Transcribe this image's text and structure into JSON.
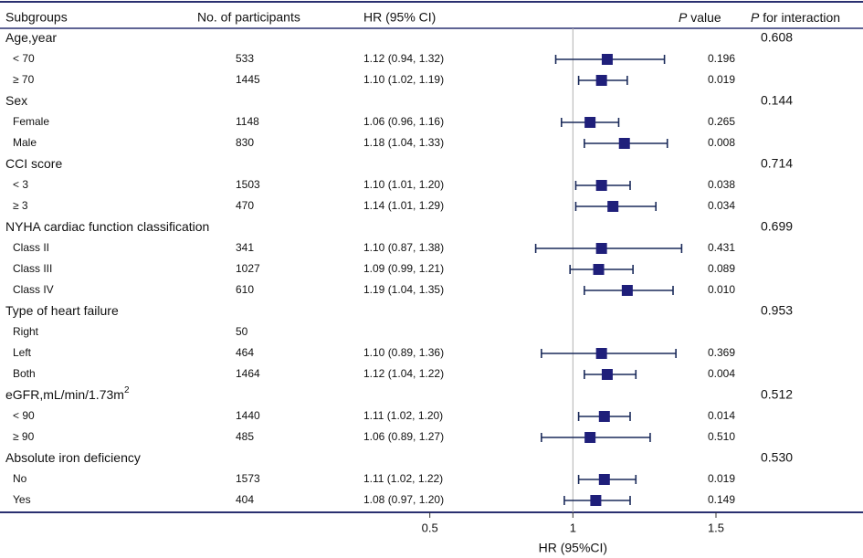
{
  "chart_data": {
    "type": "forest",
    "headers": {
      "subgroups": "Subgroups",
      "participants": "No. of participants",
      "hr": "HR (95% CI)",
      "p_value_italic": "P",
      "p_value_rest": " value",
      "p_interaction_italic": "P",
      "p_interaction_rest": " for interaction"
    },
    "xlabel": "HR (95%CI)",
    "xlim": [
      0.3,
      1.8
    ],
    "ticks": [
      {
        "value": 0.5,
        "label": "0.5"
      },
      {
        "value": 1,
        "label": "1"
      },
      {
        "value": 1.5,
        "label": "1.5"
      }
    ],
    "reference_line": 1,
    "marker_color": "#1f1f7a",
    "line_color": "#1a2a5a",
    "groups": [
      {
        "label": "Age,year",
        "p_interaction": "0.608",
        "rows": [
          {
            "label": "< 70",
            "n": "533",
            "hr_text": "1.12 (0.94, 1.32)",
            "hr": 1.12,
            "lo": 0.94,
            "hi": 1.32,
            "p": "0.196"
          },
          {
            "label": "≥ 70",
            "n": "1445",
            "hr_text": "1.10 (1.02, 1.19)",
            "hr": 1.1,
            "lo": 1.02,
            "hi": 1.19,
            "p": "0.019"
          }
        ]
      },
      {
        "label": "Sex",
        "p_interaction": "0.144",
        "rows": [
          {
            "label": "Female",
            "n": "1148",
            "hr_text": "1.06 (0.96, 1.16)",
            "hr": 1.06,
            "lo": 0.96,
            "hi": 1.16,
            "p": "0.265"
          },
          {
            "label": "Male",
            "n": "830",
            "hr_text": "1.18 (1.04, 1.33)",
            "hr": 1.18,
            "lo": 1.04,
            "hi": 1.33,
            "p": "0.008"
          }
        ]
      },
      {
        "label": "CCI score",
        "p_interaction": "0.714",
        "rows": [
          {
            "label": "< 3",
            "n": "1503",
            "hr_text": "1.10 (1.01, 1.20)",
            "hr": 1.1,
            "lo": 1.01,
            "hi": 1.2,
            "p": "0.038"
          },
          {
            "label": "≥ 3",
            "n": "470",
            "hr_text": "1.14 (1.01, 1.29)",
            "hr": 1.14,
            "lo": 1.01,
            "hi": 1.29,
            "p": "0.034"
          }
        ]
      },
      {
        "label": "NYHA cardiac function classification",
        "p_interaction": "0.699",
        "rows": [
          {
            "label": "Class II",
            "n": "341",
            "hr_text": "1.10 (0.87, 1.38)",
            "hr": 1.1,
            "lo": 0.87,
            "hi": 1.38,
            "p": "0.431"
          },
          {
            "label": "Class III",
            "n": "1027",
            "hr_text": "1.09 (0.99, 1.21)",
            "hr": 1.09,
            "lo": 0.99,
            "hi": 1.21,
            "p": "0.089"
          },
          {
            "label": "Class IV",
            "n": "610",
            "hr_text": "1.19 (1.04, 1.35)",
            "hr": 1.19,
            "lo": 1.04,
            "hi": 1.35,
            "p": "0.010"
          }
        ]
      },
      {
        "label": "Type of heart failure",
        "p_interaction": "0.953",
        "rows": [
          {
            "label": "Right",
            "n": "50",
            "hr_text": "",
            "hr": null,
            "lo": null,
            "hi": null,
            "p": ""
          },
          {
            "label": "Left",
            "n": "464",
            "hr_text": "1.10 (0.89, 1.36)",
            "hr": 1.1,
            "lo": 0.89,
            "hi": 1.36,
            "p": "0.369"
          },
          {
            "label": "Both",
            "n": "1464",
            "hr_text": "1.12 (1.04, 1.22)",
            "hr": 1.12,
            "lo": 1.04,
            "hi": 1.22,
            "p": "0.004"
          }
        ]
      },
      {
        "label": "eGFR,mL/min/1.73m",
        "label_sup": "2",
        "p_interaction": "0.512",
        "rows": [
          {
            "label": "< 90",
            "n": "1440",
            "hr_text": "1.11 (1.02, 1.20)",
            "hr": 1.11,
            "lo": 1.02,
            "hi": 1.2,
            "p": "0.014"
          },
          {
            "label": "≥ 90",
            "n": "485",
            "hr_text": "1.06 (0.89, 1.27)",
            "hr": 1.06,
            "lo": 0.89,
            "hi": 1.27,
            "p": "0.510"
          }
        ]
      },
      {
        "label": "Absolute iron deficiency",
        "p_interaction": "0.530",
        "rows": [
          {
            "label": "No",
            "n": "1573",
            "hr_text": "1.11 (1.02, 1.22)",
            "hr": 1.11,
            "lo": 1.02,
            "hi": 1.22,
            "p": "0.019"
          },
          {
            "label": "Yes",
            "n": "404",
            "hr_text": "1.08 (0.97, 1.20)",
            "hr": 1.08,
            "lo": 0.97,
            "hi": 1.2,
            "p": "0.149"
          }
        ]
      }
    ]
  }
}
